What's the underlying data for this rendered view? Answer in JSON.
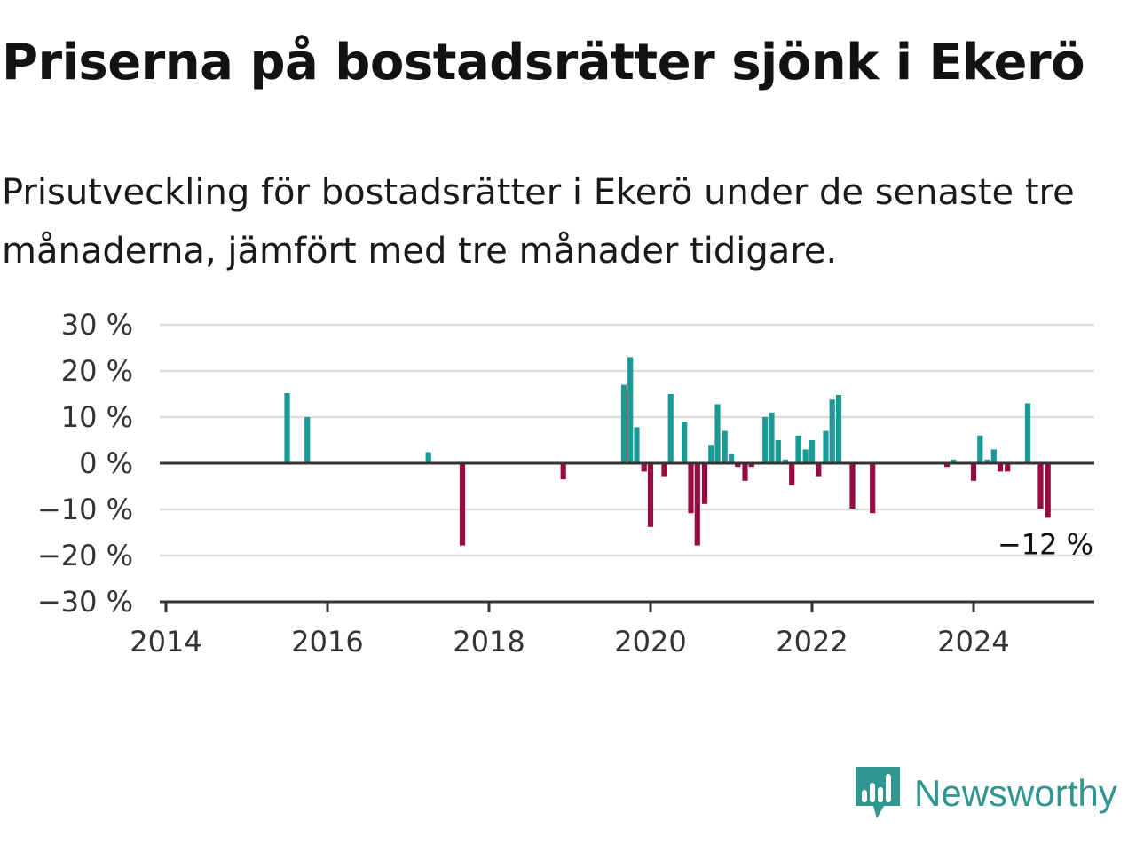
{
  "title": "Priserna på bostadsrätter sjönk i Ekerö",
  "subtitle": "Prisutveckling för bostadsrätter i Ekerö under de senaste tre månaderna, jämfört med tre månader tidigare.",
  "brand": {
    "name": "Newsworthy",
    "icon": "newsworthy-logo-icon",
    "color": "#2f9690"
  },
  "colors": {
    "positive": "#1a9a94",
    "negative": "#990a42",
    "grid": "#dddddd",
    "axis": "#333333"
  },
  "chart_data": {
    "type": "bar",
    "ylim": [
      -30,
      30
    ],
    "yticks": [
      30,
      20,
      10,
      0,
      -10,
      -20,
      -30
    ],
    "ytick_labels": [
      "30 %",
      "20 %",
      "10 %",
      "0 %",
      "−10 %",
      "−20 %",
      "−30 %"
    ],
    "xlim": [
      2014,
      2025.5
    ],
    "xticks": [
      2014,
      2016,
      2018,
      2020,
      2022,
      2024
    ],
    "xtick_labels": [
      "2014",
      "2016",
      "2018",
      "2020",
      "2022",
      "2024"
    ],
    "grid": true,
    "annotation": {
      "text": "−12 %",
      "x": 2024.92,
      "y": -12
    },
    "points": [
      {
        "x": 2015.5,
        "y": 15.2
      },
      {
        "x": 2015.75,
        "y": 10
      },
      {
        "x": 2017.25,
        "y": 2.4
      },
      {
        "x": 2017.67,
        "y": -17.8
      },
      {
        "x": 2018.92,
        "y": -3.5
      },
      {
        "x": 2019.67,
        "y": 17
      },
      {
        "x": 2019.75,
        "y": 23
      },
      {
        "x": 2019.83,
        "y": 7.8
      },
      {
        "x": 2019.92,
        "y": -1.8
      },
      {
        "x": 2020.0,
        "y": -13.8
      },
      {
        "x": 2020.17,
        "y": -2.8
      },
      {
        "x": 2020.25,
        "y": 15
      },
      {
        "x": 2020.42,
        "y": 9
      },
      {
        "x": 2020.5,
        "y": -10.8
      },
      {
        "x": 2020.58,
        "y": -17.8
      },
      {
        "x": 2020.67,
        "y": -8.8
      },
      {
        "x": 2020.75,
        "y": 4
      },
      {
        "x": 2020.83,
        "y": 12.8
      },
      {
        "x": 2020.92,
        "y": 7
      },
      {
        "x": 2021.0,
        "y": 2
      },
      {
        "x": 2021.08,
        "y": -0.8
      },
      {
        "x": 2021.17,
        "y": -3.8
      },
      {
        "x": 2021.25,
        "y": -0.8
      },
      {
        "x": 2021.42,
        "y": 10
      },
      {
        "x": 2021.5,
        "y": 11
      },
      {
        "x": 2021.58,
        "y": 5
      },
      {
        "x": 2021.67,
        "y": 0.8
      },
      {
        "x": 2021.75,
        "y": -4.8
      },
      {
        "x": 2021.83,
        "y": 6
      },
      {
        "x": 2021.92,
        "y": 3
      },
      {
        "x": 2022.0,
        "y": 5
      },
      {
        "x": 2022.08,
        "y": -2.8
      },
      {
        "x": 2022.17,
        "y": 7
      },
      {
        "x": 2022.25,
        "y": 13.8
      },
      {
        "x": 2022.33,
        "y": 14.8
      },
      {
        "x": 2022.5,
        "y": -9.8
      },
      {
        "x": 2022.75,
        "y": -10.8
      },
      {
        "x": 2023.67,
        "y": -0.8
      },
      {
        "x": 2023.75,
        "y": 0.8
      },
      {
        "x": 2024.0,
        "y": -3.8
      },
      {
        "x": 2024.08,
        "y": 6
      },
      {
        "x": 2024.17,
        "y": 0.8
      },
      {
        "x": 2024.25,
        "y": 3
      },
      {
        "x": 2024.33,
        "y": -1.8
      },
      {
        "x": 2024.42,
        "y": -1.8
      },
      {
        "x": 2024.67,
        "y": 13
      },
      {
        "x": 2024.83,
        "y": -9.8
      },
      {
        "x": 2024.92,
        "y": -11.8
      }
    ]
  }
}
